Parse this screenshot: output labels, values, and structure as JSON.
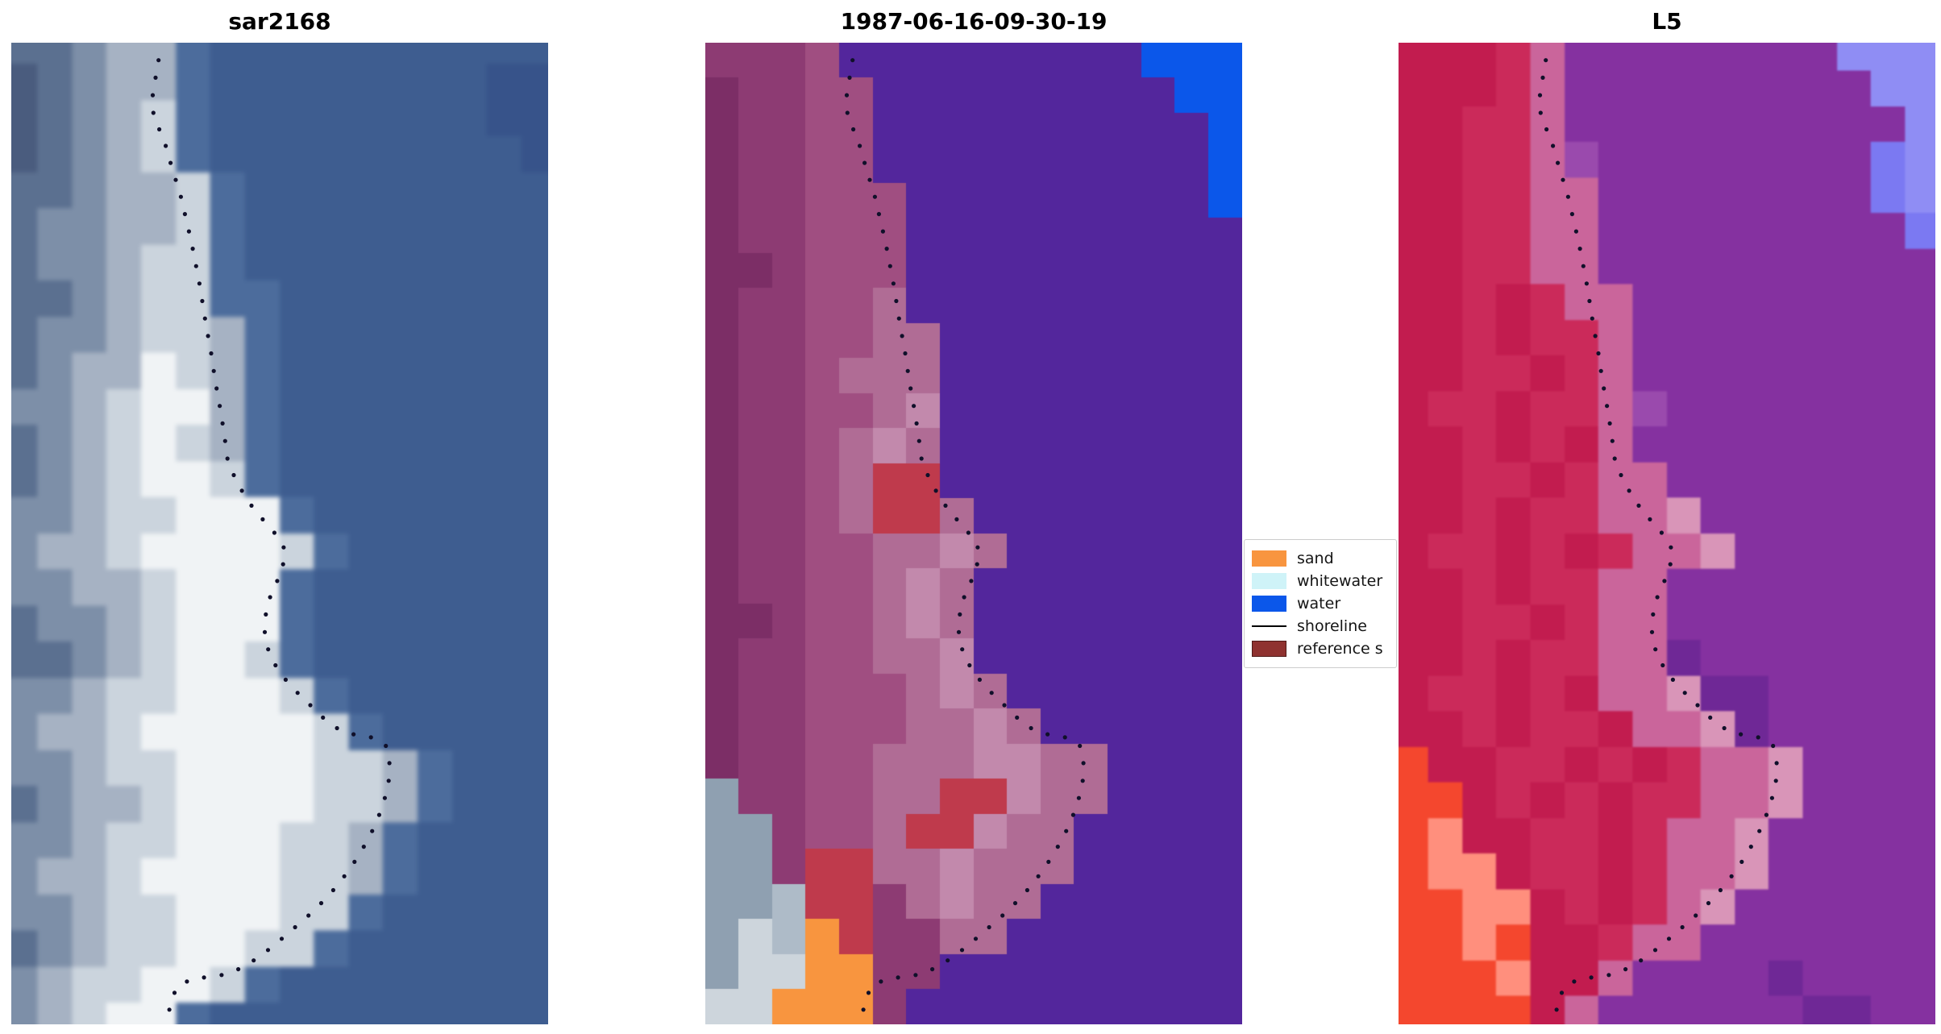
{
  "figure": {
    "background": "#ffffff"
  },
  "chart_data": {
    "type": "heatmap",
    "description": "Three-panel coastal satellite figure: SAR image, classified image with class legend, and Landsat-5 false-color image, each overlaid with the same dotted shoreline.",
    "panels": [
      {
        "id": "sar",
        "title": "sar2168",
        "palette": {
          "a": "#4A5C7E",
          "b": "#5B7090",
          "c": "#7D8FA8",
          "d": "#A6B2C3",
          "e": "#CBD4DD",
          "f": "#F0F3F5",
          "u": "#4C6C9C",
          "v": "#37538A",
          "w": "#3E5D90"
        },
        "grid": [
          "bbcdduwwwwwwwwww",
          "abcdduwwwwwwwwvv",
          "abcdeuwwwwwwwwvv",
          "abcdeuwwwwwwwwwv",
          "bbcddeuwwwwwwwww",
          "bccddeuwwwwwwwww",
          "bccdeeuwwwwwwwww",
          "bbcdeeuuwwwwwwww",
          "bccdeeduwwwwwwww",
          "bcddfeduwwwwwwww",
          "ccdeffduwwwwwwww",
          "bcdefeduwwwwwwww",
          "bcdeffeuwwwwwwww",
          "ccdeefffuwwwwwww",
          "cddeffffeuwwwwww",
          "ccddefffuwwwwwww",
          "bccdefffuwwwwwww",
          "bbcdeffeuwwwwwww",
          "ccdeefffeuwwwwww",
          "cddefffffeuwwwww",
          "ccdeeffffeeduwww",
          "bcddeffffeeduwww",
          "ccdeefffeeduwwww",
          "cddeffffeeduwwww",
          "ccdeefffeeuwwwww",
          "bcdeeffeeuwwwwww",
          "cdeeffeuwwwwwwww",
          "cdeffuwwwwwwwwww"
        ]
      },
      {
        "id": "classified",
        "title": "1987-06-16-09-30-19",
        "palette": {
          "m": "#7C2E66",
          "n": "#8D3B73",
          "p": "#A04E81",
          "q": "#B06C95",
          "k": "#C289AC",
          "P": "#53269C",
          "B": "#0B57EA",
          "R": "#BF3A4C",
          "O": "#F8953F",
          "G": "#8FA0B1",
          "T": "#AEBBC8",
          "H": "#CDD5DC"
        },
        "grid": [
          "nnnpPPPPPPPPPBBB",
          "mnnppPPPPPPPPPBB",
          "mnnppPPPPPPPPPPB",
          "mnnppPPPPPPPPPPB",
          "mnnpppPPPPPPPPPB",
          "mnnpppPPPPPPPPPP",
          "mmnpppPPPPPPPPPP",
          "mnnppqPPPPPPPPPP",
          "mnnppqqPPPPPPPPP",
          "mnnpqqqPPPPPPPPP",
          "mnnppqkPPPPPPPPP",
          "mnnpqkqPPPPPPPPP",
          "mnnpqRRPPPPPPPPP",
          "mnnpqRRqPPPPPPPP",
          "mnnppqqkqPPPPPPP",
          "mnnppqkqPPPPPPPP",
          "mmnppqkqPPPPPPPP",
          "mnnppqqkPPPPPPPP",
          "mnnpppqkqPPPPPPP",
          "mnnpppqqkqPPPPPP",
          "mnnppqqqkkqqPPPP",
          "GnnppqqRRkqqPPPP",
          "GGnppqRRkqqPPPPP",
          "GGnRRqqkqqqPPPPP",
          "GGTRRnqkqqPPPPPP",
          "GHTORnnqqPPPPPPP",
          "GHHOOnnPPPPPPPPP",
          "HHOOOnPPPPPPPPPP"
        ]
      },
      {
        "id": "l5",
        "title": "L5",
        "palette": {
          "r": "#C21C4F",
          "s": "#CB2A5A",
          "t": "#CA659B",
          "l": "#D995B8",
          "W": "#8531A0",
          "V": "#9A4AAD",
          "X": "#6F2896",
          "Y": "#8F8DF4",
          "Z": "#7B79F2",
          "F": "#F4472E",
          "E": "#FF8F7D"
        },
        "grid": [
          "rrrstWWWWWWWWYYY",
          "rrrstWWWWWWWWWYY",
          "rrsstWWWWWWWWWWY",
          "rrsstVWWWWWWWWZY",
          "rrssttWWWWWWWWZY",
          "rrssttWWWWWWWWWZ",
          "rrssttWWWWWWWWWW",
          "rrsrsttWWWWWWWWW",
          "rrsrsstWWWWWWWWW",
          "rrssrstWWWWWWWWW",
          "rssrsstVWWWWWWWW",
          "rrsrsrtWWWWWWWWW",
          "rrssrsttWWWWWWWW",
          "rrsrssttlWWWWWWW",
          "rssrsrsttlWWWWWW",
          "rrsrssttWWWWWWWW",
          "rrssrsttWWWWWWWW",
          "rrsrssttXWWWWWWW",
          "rssrsrttlXXWWWWW",
          "rrsrssrttlXWWWWW",
          "FrrssrsrsttlWWWW",
          "FFrsrsrssttlWWWW",
          "FErrssrsttlWWWWW",
          "FEErssrsttlWWWWW",
          "FFEErsrstlWWWWWW",
          "FFEFrrsttWWWWWWW",
          "FFFErrtWWWWXWWWW",
          "FFFFrtWWWWWWXXWW"
        ]
      }
    ],
    "shoreline": {
      "color": "#10102A",
      "dot_radius": 2.6,
      "dot_spacing": 22,
      "points": [
        [
          0.28,
          0.0
        ],
        [
          0.272,
          0.025
        ],
        [
          0.263,
          0.055
        ],
        [
          0.265,
          0.075
        ],
        [
          0.285,
          0.1
        ],
        [
          0.298,
          0.125
        ],
        [
          0.315,
          0.155
        ],
        [
          0.328,
          0.185
        ],
        [
          0.34,
          0.215
        ],
        [
          0.352,
          0.25
        ],
        [
          0.362,
          0.285
        ],
        [
          0.372,
          0.315
        ],
        [
          0.38,
          0.345
        ],
        [
          0.39,
          0.375
        ],
        [
          0.397,
          0.4
        ],
        [
          0.403,
          0.425
        ],
        [
          0.42,
          0.448
        ],
        [
          0.445,
          0.47
        ],
        [
          0.475,
          0.49
        ],
        [
          0.503,
          0.507
        ],
        [
          0.512,
          0.522
        ],
        [
          0.498,
          0.545
        ],
        [
          0.482,
          0.565
        ],
        [
          0.473,
          0.585
        ],
        [
          0.472,
          0.605
        ],
        [
          0.482,
          0.625
        ],
        [
          0.502,
          0.643
        ],
        [
          0.525,
          0.658
        ],
        [
          0.548,
          0.67
        ],
        [
          0.57,
          0.682
        ],
        [
          0.595,
          0.695
        ],
        [
          0.62,
          0.702
        ],
        [
          0.648,
          0.706
        ],
        [
          0.675,
          0.708
        ],
        [
          0.697,
          0.715
        ],
        [
          0.704,
          0.728
        ],
        [
          0.705,
          0.745
        ],
        [
          0.7,
          0.762
        ],
        [
          0.69,
          0.78
        ],
        [
          0.678,
          0.797
        ],
        [
          0.663,
          0.813
        ],
        [
          0.645,
          0.83
        ],
        [
          0.626,
          0.845
        ],
        [
          0.605,
          0.86
        ],
        [
          0.582,
          0.874
        ],
        [
          0.558,
          0.887
        ],
        [
          0.533,
          0.899
        ],
        [
          0.51,
          0.91
        ],
        [
          0.488,
          0.92
        ],
        [
          0.465,
          0.93
        ],
        [
          0.44,
          0.939
        ],
        [
          0.415,
          0.946
        ],
        [
          0.39,
          0.95
        ],
        [
          0.363,
          0.952
        ],
        [
          0.337,
          0.954
        ],
        [
          0.312,
          0.96
        ],
        [
          0.3,
          0.972
        ],
        [
          0.294,
          0.986
        ],
        [
          0.292,
          1.0
        ]
      ]
    },
    "legend": {
      "entries": [
        {
          "label": "sand",
          "swatch": "patch",
          "color": "#F8953F",
          "edge": "#F8953F"
        },
        {
          "label": "whitewater",
          "swatch": "patch",
          "color": "#CFF3F8",
          "edge": "#CFF3F8"
        },
        {
          "label": "water",
          "swatch": "patch",
          "color": "#0B57EA",
          "edge": "#0B57EA"
        },
        {
          "label": "shoreline",
          "swatch": "line",
          "color": "#000000",
          "edge": "#000000"
        },
        {
          "label": "reference s",
          "swatch": "patch",
          "color": "#8F3230",
          "edge": "#4F1A18"
        }
      ]
    }
  }
}
